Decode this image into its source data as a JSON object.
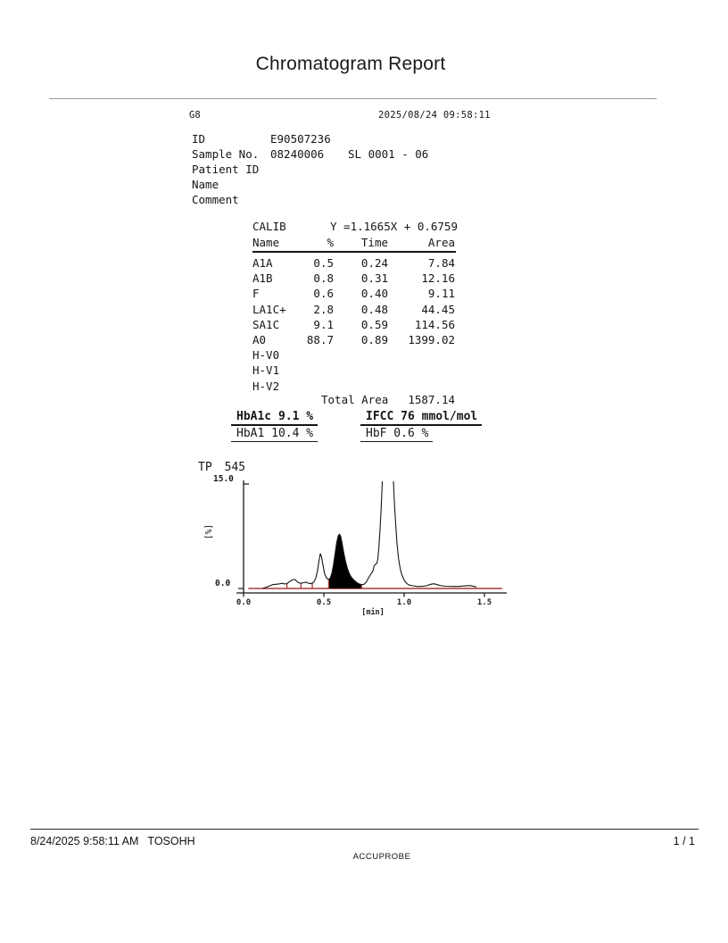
{
  "page": {
    "title": "Chromatogram Report",
    "footer": {
      "datetime": "8/24/2025 9:58:11 AM",
      "system": "TOSOHH",
      "page_num": "1 / 1",
      "center": "ACCUPROBE"
    }
  },
  "report": {
    "device": "G8",
    "datetime": "2025/08/24 09:58:11",
    "fields": [
      {
        "label": "ID",
        "value": "E90507236",
        "extra": ""
      },
      {
        "label": "Sample No.",
        "value": "08240006",
        "extra": "SL 0001 - 06"
      },
      {
        "label": "Patient ID",
        "value": "",
        "extra": ""
      },
      {
        "label": "Name",
        "value": "",
        "extra": ""
      },
      {
        "label": "Comment",
        "value": "",
        "extra": ""
      }
    ],
    "calib": {
      "label": "CALIB",
      "equation": "Y =1.1665X + 0.6759"
    },
    "peak_table": {
      "headers": [
        "Name",
        "%",
        "Time",
        "Area"
      ],
      "rows": [
        [
          "A1A",
          "0.5",
          "0.24",
          "7.84"
        ],
        [
          "A1B",
          "0.8",
          "0.31",
          "12.16"
        ],
        [
          "F",
          "0.6",
          "0.40",
          "9.11"
        ],
        [
          "LA1C+",
          "2.8",
          "0.48",
          "44.45"
        ],
        [
          "SA1C",
          "9.1",
          "0.59",
          "114.56"
        ],
        [
          "A0",
          "88.7",
          "0.89",
          "1399.02"
        ],
        [
          "H-V0",
          "",
          "",
          ""
        ],
        [
          "H-V1",
          "",
          "",
          ""
        ],
        [
          "H-V2",
          "",
          "",
          ""
        ]
      ]
    },
    "total_area": {
      "label": "Total Area",
      "value": "1587.14"
    },
    "results": {
      "hba1c": "HbA1c 9.1 %",
      "ifcc": "IFCC 76 mmol/mol",
      "hba1": "HbA1 10.4 %",
      "hbf": "HbF 0.6 %"
    }
  },
  "chart_data": {
    "type": "line",
    "title_prefix": "TP",
    "title_value": "545",
    "xlabel": "[min]",
    "ylabel": "[%]",
    "xlim": [
      0,
      1.6
    ],
    "ylim": [
      0,
      15
    ],
    "ymax_label": "15.0",
    "ymin_label": "0.0",
    "xticks": [
      0,
      0.5,
      1.0,
      1.5
    ],
    "xtick_labels": [
      "0.0",
      "0.5",
      "1.0",
      "1.5"
    ],
    "trace_color": "#161616",
    "baseline_color": "#a93c38",
    "fill_color": "#000000",
    "note": "A0 peak exceeds y-axis range and is clipped at top; SA1C peak is solid-filled",
    "trace": [
      [
        0.12,
        0.05
      ],
      [
        0.14,
        0.15
      ],
      [
        0.16,
        0.35
      ],
      [
        0.18,
        0.55
      ],
      [
        0.2,
        0.6
      ],
      [
        0.22,
        0.65
      ],
      [
        0.24,
        0.75
      ],
      [
        0.255,
        0.65
      ],
      [
        0.27,
        0.7
      ],
      [
        0.29,
        1.05
      ],
      [
        0.305,
        1.25
      ],
      [
        0.32,
        1.3
      ],
      [
        0.33,
        1.05
      ],
      [
        0.345,
        0.8
      ],
      [
        0.36,
        0.75
      ],
      [
        0.375,
        0.85
      ],
      [
        0.39,
        0.9
      ],
      [
        0.405,
        0.75
      ],
      [
        0.42,
        0.7
      ],
      [
        0.43,
        0.8
      ],
      [
        0.44,
        1.0
      ],
      [
        0.45,
        1.5
      ],
      [
        0.46,
        2.5
      ],
      [
        0.47,
        4.0
      ],
      [
        0.478,
        5.0
      ],
      [
        0.485,
        4.6
      ],
      [
        0.495,
        3.3
      ],
      [
        0.505,
        2.1
      ],
      [
        0.515,
        1.55
      ],
      [
        0.525,
        1.35
      ],
      [
        0.53,
        1.3
      ],
      [
        0.54,
        1.5
      ],
      [
        0.55,
        2.2
      ],
      [
        0.56,
        3.4
      ],
      [
        0.57,
        5.0
      ],
      [
        0.58,
        6.6
      ],
      [
        0.59,
        7.6
      ],
      [
        0.598,
        7.8
      ],
      [
        0.606,
        7.4
      ],
      [
        0.615,
        6.3
      ],
      [
        0.625,
        5.0
      ],
      [
        0.635,
        3.9
      ],
      [
        0.645,
        3.0
      ],
      [
        0.655,
        2.35
      ],
      [
        0.665,
        1.85
      ],
      [
        0.675,
        1.5
      ],
      [
        0.69,
        1.15
      ],
      [
        0.705,
        0.85
      ],
      [
        0.72,
        0.65
      ],
      [
        0.735,
        0.55
      ],
      [
        0.75,
        0.6
      ],
      [
        0.765,
        0.95
      ],
      [
        0.78,
        1.6
      ],
      [
        0.79,
        2.0
      ],
      [
        0.8,
        2.3
      ],
      [
        0.807,
        2.6
      ],
      [
        0.812,
        3.2
      ],
      [
        0.82,
        3.45
      ],
      [
        0.83,
        3.6
      ],
      [
        0.836,
        4.2
      ],
      [
        0.843,
        6.0
      ],
      [
        0.85,
        8.5
      ],
      [
        0.858,
        12.0
      ],
      [
        0.865,
        16.0
      ],
      [
        0.87,
        18.0
      ],
      [
        0.928,
        18.0
      ],
      [
        0.933,
        15.5
      ],
      [
        0.94,
        12.0
      ],
      [
        0.948,
        9.0
      ],
      [
        0.956,
        6.3
      ],
      [
        0.965,
        4.3
      ],
      [
        0.975,
        2.9
      ],
      [
        0.985,
        2.0
      ],
      [
        1.0,
        1.2
      ],
      [
        1.015,
        0.75
      ],
      [
        1.03,
        0.5
      ],
      [
        1.05,
        0.4
      ],
      [
        1.08,
        0.3
      ],
      [
        1.11,
        0.3
      ],
      [
        1.14,
        0.4
      ],
      [
        1.165,
        0.6
      ],
      [
        1.185,
        0.68
      ],
      [
        1.205,
        0.55
      ],
      [
        1.23,
        0.4
      ],
      [
        1.26,
        0.32
      ],
      [
        1.3,
        0.3
      ],
      [
        1.34,
        0.3
      ],
      [
        1.38,
        0.38
      ],
      [
        1.41,
        0.42
      ],
      [
        1.435,
        0.3
      ],
      [
        1.45,
        0.22
      ]
    ],
    "filled_peak": {
      "name": "SA1C",
      "t_from": 0.53,
      "t_to": 0.735
    },
    "delimiter_ticks": [
      [
        0.27,
        0.7
      ],
      [
        0.357,
        0.78
      ],
      [
        0.428,
        0.85
      ]
    ],
    "baseline_span": [
      0.03,
      1.61
    ]
  }
}
